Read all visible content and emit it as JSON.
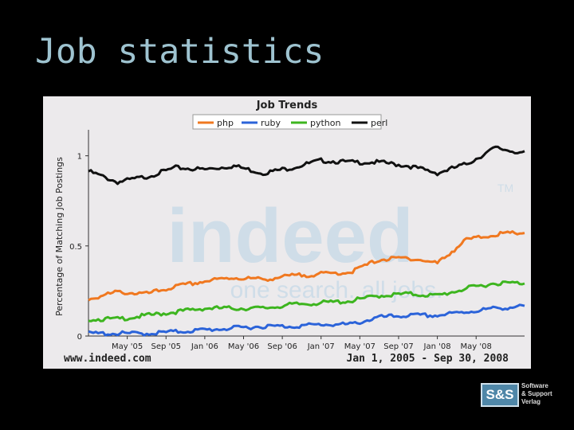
{
  "slide": {
    "title": "Job statistics"
  },
  "footer": {
    "url": "www.indeed.com",
    "range": "Jan 1, 2005 - Sep 30, 2008"
  },
  "watermark": {
    "brand": "indeed",
    "tagline": "one search. all jobs.",
    "tm": "TM"
  },
  "logo": {
    "text": "S&S",
    "line1": "Software",
    "line2": "& Support",
    "line3": "Verlag"
  },
  "chart_data": {
    "type": "line",
    "title": "Job Trends",
    "ylabel": "Percentage of Matching Job Postings",
    "xlabel": "",
    "ylim": [
      0,
      1.1
    ],
    "y_ticks": [
      0,
      0.5,
      1
    ],
    "y_tick_labels": [
      "0",
      "0.5",
      "1"
    ],
    "x_ticks": [
      "May '05",
      "Sep '05",
      "Jan '06",
      "May '06",
      "Sep '06",
      "Jan '07",
      "May '07",
      "Sep '07",
      "Jan '08",
      "May '08"
    ],
    "x_tick_months": [
      4,
      8,
      12,
      16,
      20,
      24,
      28,
      32,
      36,
      40
    ],
    "x_range_months": [
      0,
      45
    ],
    "legend_position": "top",
    "grid": false,
    "months": [
      0,
      3,
      6,
      9,
      12,
      15,
      18,
      21,
      24,
      27,
      30,
      33,
      36,
      39,
      42,
      45
    ],
    "series": [
      {
        "name": "php",
        "color": "#f07820",
        "values": [
          0.21,
          0.25,
          0.24,
          0.28,
          0.31,
          0.33,
          0.32,
          0.34,
          0.35,
          0.36,
          0.43,
          0.44,
          0.41,
          0.54,
          0.57,
          0.58
        ]
      },
      {
        "name": "ruby",
        "color": "#2b63d9",
        "values": [
          0.02,
          0.02,
          0.02,
          0.03,
          0.04,
          0.05,
          0.06,
          0.06,
          0.07,
          0.07,
          0.11,
          0.12,
          0.12,
          0.14,
          0.16,
          0.17
        ]
      },
      {
        "name": "python",
        "color": "#3db51f",
        "values": [
          0.1,
          0.1,
          0.12,
          0.14,
          0.16,
          0.16,
          0.16,
          0.18,
          0.19,
          0.2,
          0.23,
          0.24,
          0.23,
          0.27,
          0.3,
          0.3
        ]
      },
      {
        "name": "perl",
        "color": "#111111",
        "values": [
          0.92,
          0.86,
          0.89,
          0.94,
          0.93,
          0.95,
          0.91,
          0.94,
          0.98,
          0.97,
          0.97,
          0.95,
          0.91,
          0.96,
          1.05,
          1.02
        ]
      }
    ]
  }
}
